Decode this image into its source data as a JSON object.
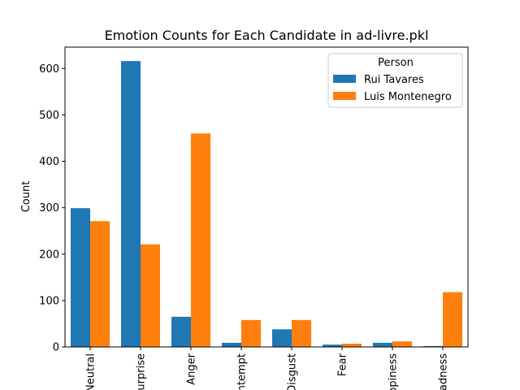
{
  "chart_data": {
    "type": "bar",
    "title": "Emotion Counts for Each Candidate in ad-livre.pkl",
    "xlabel": "",
    "ylabel": "Count",
    "categories": [
      "Neutral",
      "Surprise",
      "Anger",
      "Contempt",
      "Disgust",
      "Fear",
      "Happiness",
      "Sadness"
    ],
    "series": [
      {
        "name": "Rui Tavares",
        "color": "#1f77b4",
        "values": [
          299,
          616,
          65,
          9,
          38,
          5,
          9,
          2
        ]
      },
      {
        "name": "Luis Montenegro",
        "color": "#ff7f0e",
        "values": [
          271,
          221,
          460,
          58,
          58,
          7,
          12,
          118
        ]
      }
    ],
    "ylim": [
      0,
      646
    ],
    "yticks": [
      0,
      100,
      200,
      300,
      400,
      500,
      600
    ],
    "legend": {
      "title": "Person",
      "placement": "top-right"
    },
    "grid": false
  }
}
